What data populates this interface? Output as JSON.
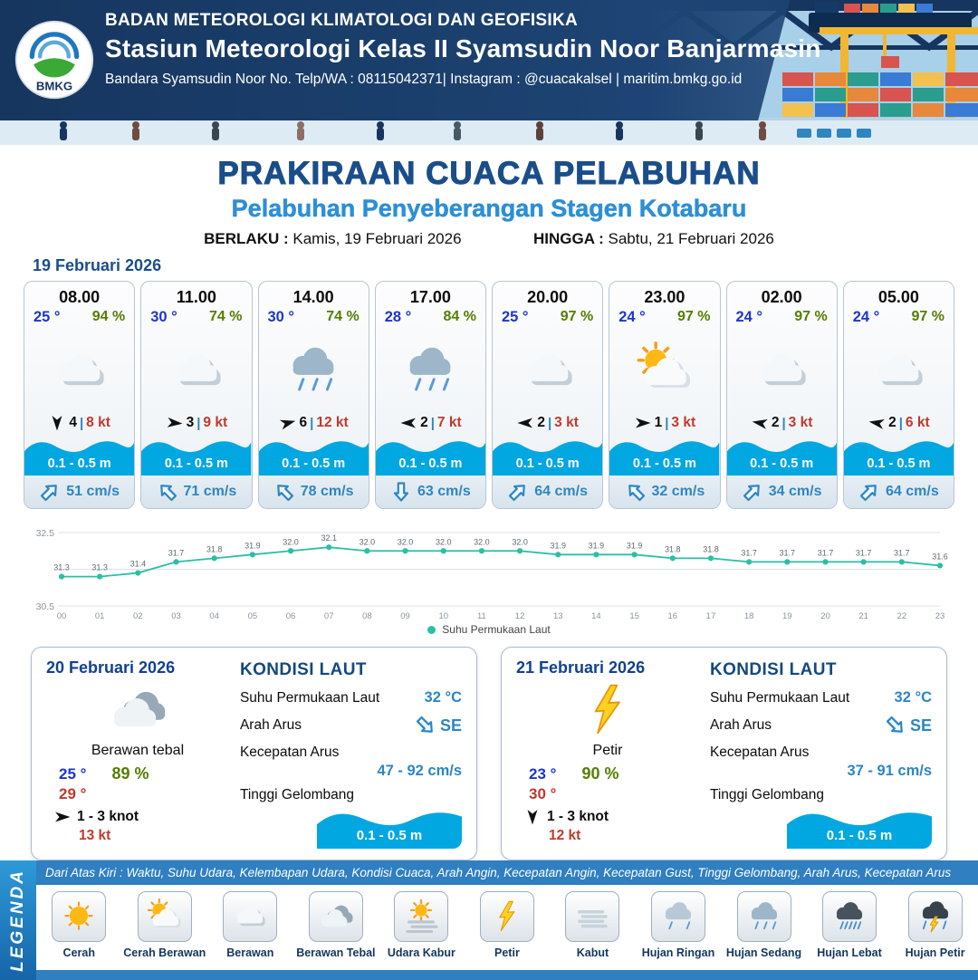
{
  "header": {
    "logo_text": "BMKG",
    "org": "BADAN METEOROLOGI KLIMATOLOGI DAN GEOFISIKA",
    "station": "Stasiun Meteorologi Kelas II Syamsudin Noor Banjarmasin",
    "contact": "Bandara Syamsudin Noor No. Telp/WA : 08115042371| Instagram : @cuacakalsel | maritim.bmkg.go.id"
  },
  "title": {
    "main": "PRAKIRAAN CUACA PELABUHAN",
    "sub": "Pelabuhan Penyeberangan Stagen Kotabaru",
    "valid_label": "BERLAKU :",
    "valid_value": "Kamis, 19 Februari 2026",
    "until_label": "HINGGA :",
    "until_value": "Sabtu, 21 Februari 2026"
  },
  "forecast_date": "19 Februari 2026",
  "ui": {
    "pipe": "|"
  },
  "hourly": [
    {
      "time": "08.00",
      "temp": "25 °",
      "rh": "94 %",
      "icon": "berawan",
      "wind_deg": 180,
      "wind_num": "4",
      "wind_kt": "8 kt",
      "wave": "0.1 - 0.5 m",
      "current_deg": 45,
      "current": "51 cm/s"
    },
    {
      "time": "11.00",
      "temp": "30 °",
      "rh": "74 %",
      "icon": "berawan",
      "wind_deg": 95,
      "wind_num": "3",
      "wind_kt": "9 kt",
      "wave": "0.1 - 0.5 m",
      "current_deg": 315,
      "current": "71 cm/s"
    },
    {
      "time": "14.00",
      "temp": "30 °",
      "rh": "74 %",
      "icon": "hujan-sedang",
      "wind_deg": 75,
      "wind_num": "6",
      "wind_kt": "12 kt",
      "wave": "0.1 - 0.5 m",
      "current_deg": 315,
      "current": "78 cm/s"
    },
    {
      "time": "17.00",
      "temp": "28 °",
      "rh": "84 %",
      "icon": "hujan-sedang",
      "wind_deg": 270,
      "wind_num": "2",
      "wind_kt": "7 kt",
      "wave": "0.1 - 0.5 m",
      "current_deg": 180,
      "current": "63 cm/s"
    },
    {
      "time": "20.00",
      "temp": "25 °",
      "rh": "97 %",
      "icon": "berawan",
      "wind_deg": 270,
      "wind_num": "2",
      "wind_kt": "3 kt",
      "wave": "0.1 - 0.5 m",
      "current_deg": 45,
      "current": "64 cm/s"
    },
    {
      "time": "23.00",
      "temp": "24 °",
      "rh": "97 %",
      "icon": "cerah-berawan",
      "wind_deg": 90,
      "wind_num": "1",
      "wind_kt": "3 kt",
      "wave": "0.1 - 0.5 m",
      "current_deg": 315,
      "current": "32 cm/s"
    },
    {
      "time": "02.00",
      "temp": "24 °",
      "rh": "97 %",
      "icon": "berawan",
      "wind_deg": 280,
      "wind_num": "2",
      "wind_kt": "3 kt",
      "wave": "0.1 - 0.5 m",
      "current_deg": 45,
      "current": "34 cm/s"
    },
    {
      "time": "05.00",
      "temp": "24 °",
      "rh": "97 %",
      "icon": "berawan",
      "wind_deg": 280,
      "wind_num": "2",
      "wind_kt": "6 kt",
      "wave": "0.1 - 0.5 m",
      "current_deg": 45,
      "current": "64 cm/s"
    }
  ],
  "chart_data": {
    "type": "line",
    "x": [
      "00",
      "01",
      "02",
      "03",
      "04",
      "05",
      "06",
      "07",
      "08",
      "09",
      "10",
      "11",
      "12",
      "13",
      "14",
      "15",
      "16",
      "17",
      "18",
      "19",
      "20",
      "21",
      "22",
      "23"
    ],
    "series": [
      {
        "name": "Suhu Permukaan Laut",
        "values": [
          31.3,
          31.3,
          31.4,
          31.7,
          31.8,
          31.9,
          32.0,
          32.1,
          32.0,
          32.0,
          32.0,
          32.0,
          32.0,
          31.9,
          31.9,
          31.9,
          31.8,
          31.8,
          31.7,
          31.7,
          31.7,
          31.7,
          31.7,
          31.6
        ]
      }
    ],
    "ylim": [
      30.5,
      32.5
    ],
    "color": "#2bbfa4",
    "grid": true,
    "legend_position": "bottom"
  },
  "daily": [
    {
      "date": "20 Februari 2026",
      "icon": "berawan-tebal",
      "condition": "Berawan tebal",
      "temp_min": "25 °",
      "temp_max": "29 °",
      "rh": "89 %",
      "wind_deg": 90,
      "wind": "1  - 3 knot",
      "gust": "13 kt",
      "sea": {
        "heading": "KONDISI LAUT",
        "sst_label": "Suhu Permukaan Laut",
        "sst_value": "32 °C",
        "current_dir_label": "Arah Arus",
        "current_dir": "SE",
        "current_dir_deg": 135,
        "current_speed_label": "Kecepatan Arus",
        "current_speed": "47 - 92 cm/s",
        "wave_label": "Tinggi Gelombang",
        "wave_value": "0.1 - 0.5 m"
      }
    },
    {
      "date": "21 Februari 2026",
      "icon": "petir",
      "condition": "Petir",
      "temp_min": "23 °",
      "temp_max": "30 °",
      "rh": "90 %",
      "wind_deg": 180,
      "wind": "1  - 3 knot",
      "gust": "12 kt",
      "sea": {
        "heading": "KONDISI LAUT",
        "sst_label": "Suhu Permukaan Laut",
        "sst_value": "32 °C",
        "current_dir_label": "Arah Arus",
        "current_dir": "SE",
        "current_dir_deg": 135,
        "current_speed_label": "Kecepatan Arus",
        "current_speed": "37 - 91 cm/s",
        "wave_label": "Tinggi Gelombang",
        "wave_value": "0.1 - 0.5 m"
      }
    }
  ],
  "legend": {
    "title": "LEGENDA",
    "desc": "Dari Atas Kiri : Waktu, Suhu Udara, Kelembapan Udara, Kondisi Cuaca, Arah Angin, Kecepatan Angin, Kecepatan Gust, Tinggi Gelombang, Arah Arus, Kecepatan Arus",
    "items": [
      {
        "label": "Cerah",
        "icon": "cerah"
      },
      {
        "label": "Cerah Berawan",
        "icon": "cerah-berawan"
      },
      {
        "label": "Berawan",
        "icon": "berawan"
      },
      {
        "label": "Berawan Tebal",
        "icon": "berawan-tebal"
      },
      {
        "label": "Udara Kabur",
        "icon": "udara-kabur"
      },
      {
        "label": "Petir",
        "icon": "petir"
      },
      {
        "label": "Kabut",
        "icon": "kabut"
      },
      {
        "label": "Hujan Ringan",
        "icon": "hujan-ringan"
      },
      {
        "label": "Hujan Sedang",
        "icon": "hujan-sedang"
      },
      {
        "label": "Hujan Lebat",
        "icon": "hujan-lebat"
      },
      {
        "label": "Hujan Petir",
        "icon": "hujan-petir"
      }
    ]
  }
}
